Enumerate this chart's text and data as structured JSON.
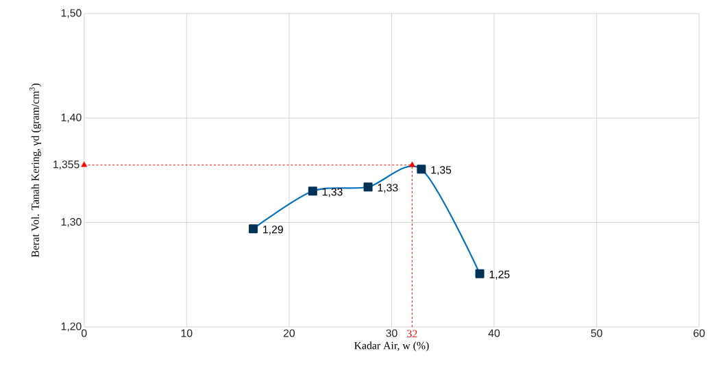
{
  "chart_data": {
    "type": "line",
    "xlabel": "Kadar Air, w (%)",
    "ylabel": "Berat Vol. Tanah Kering, γd (gram/cm$^{3}$)",
    "x": [
      16.5,
      22.3,
      27.7,
      32.9,
      38.6
    ],
    "series": [
      {
        "color": "#0070c0",
        "values": [
          1.294,
          1.33,
          1.334,
          1.351,
          1.251
        ],
        "value_labels": [
          "1,29",
          "1,33",
          "1,33",
          "1,35",
          "1,25"
        ]
      },
      {
        "type": "scatter",
        "color": "#ff0000",
        "marker": "triangle",
        "x": [
          0,
          32
        ],
        "values": [
          1.355,
          1.355
        ]
      }
    ],
    "xlim": [
      0,
      60
    ],
    "xticks": [
      0,
      10,
      20,
      30,
      40,
      50,
      60
    ],
    "ylim": [
      1.2,
      1.5
    ],
    "yticks": [
      {
        "value": 1.2,
        "label": "1,20"
      },
      {
        "value": 1.3,
        "label": "1,30"
      },
      {
        "value": 1.4,
        "label": "1,40"
      },
      {
        "value": 1.5,
        "label": "1,50"
      }
    ],
    "ref_lines": [
      {
        "axis": "y",
        "value": 1.355,
        "label": "1,355",
        "color": "#ff0000",
        "line_style": "dashed"
      },
      {
        "axis": "x",
        "value": 32,
        "label": "32",
        "color": "#ff0000",
        "line_style": "dashed"
      }
    ],
    "grid": true,
    "marker": "square",
    "line_style": "solid"
  }
}
